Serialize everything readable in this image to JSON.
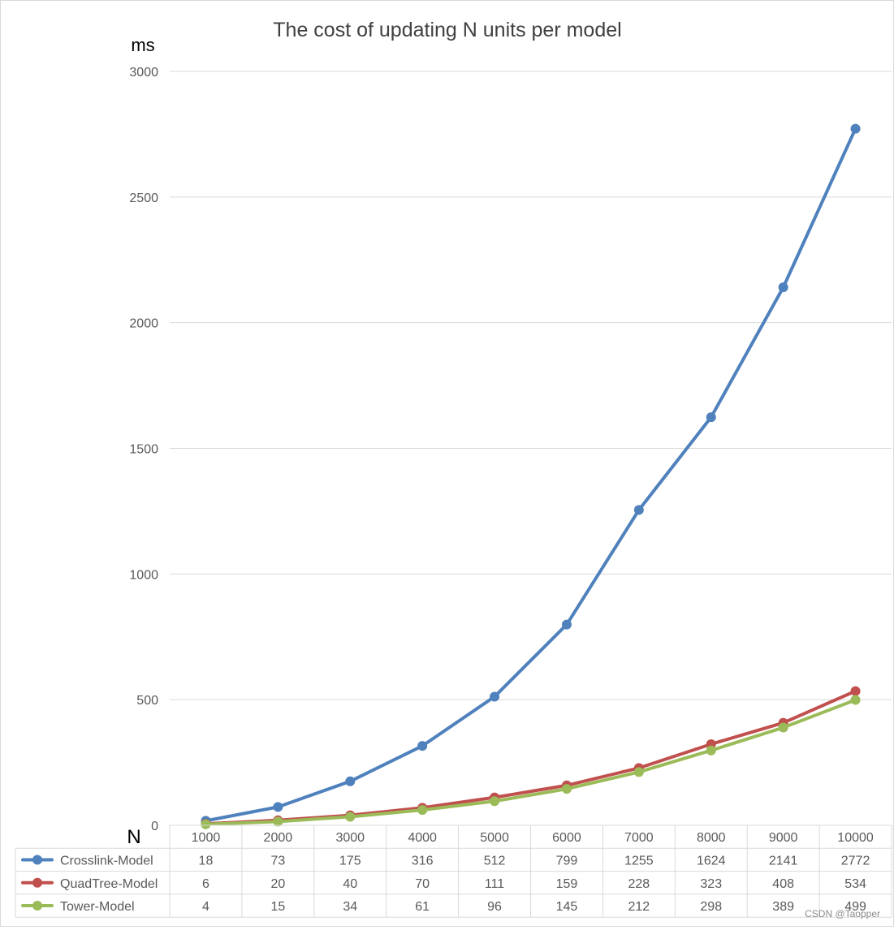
{
  "watermark": "CSDN @Taopper",
  "chart_data": {
    "type": "line",
    "title": "The cost of updating N units per model",
    "xlabel": "N",
    "ylabel": "ms",
    "ylim": [
      0,
      3000
    ],
    "yticks": [
      0,
      500,
      1000,
      1500,
      2000,
      2500,
      3000
    ],
    "grid": true,
    "legend": "data-table-left",
    "categories": [
      "1000",
      "2000",
      "3000",
      "4000",
      "5000",
      "6000",
      "7000",
      "8000",
      "9000",
      "10000"
    ],
    "series": [
      {
        "name": "Crosslink-Model",
        "color": "#4f81bd",
        "values": [
          18,
          73,
          175,
          316,
          512,
          799,
          1255,
          1624,
          2141,
          2772
        ]
      },
      {
        "name": "QuadTree-Model",
        "color": "#c0504d",
        "values": [
          6,
          20,
          40,
          70,
          111,
          159,
          228,
          323,
          408,
          534
        ]
      },
      {
        "name": "Tower-Model",
        "color": "#9bbb59",
        "values": [
          4,
          15,
          34,
          61,
          96,
          145,
          212,
          298,
          389,
          499
        ]
      }
    ]
  }
}
